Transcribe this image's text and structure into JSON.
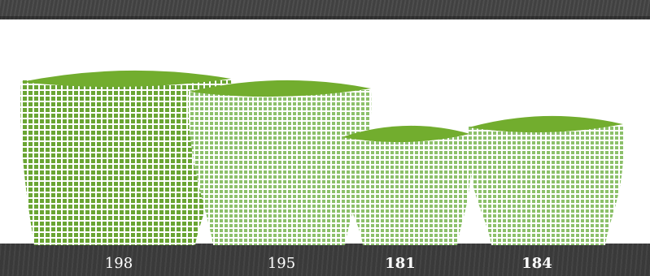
{
  "chart_data": {
    "type": "bar",
    "categories": [
      "",
      "",
      "",
      ""
    ],
    "values": [
      198,
      195,
      181,
      184
    ],
    "value_labels": [
      "198",
      "195",
      "181",
      "184"
    ],
    "bold_labels": [
      false,
      false,
      true,
      true
    ],
    "title": "",
    "xlabel": "",
    "ylabel": "",
    "colors": {
      "rim": "#72ad2e",
      "weave_dark": "#6aa533",
      "weave_light": "#8cc06a",
      "label": "#ffffff"
    }
  }
}
